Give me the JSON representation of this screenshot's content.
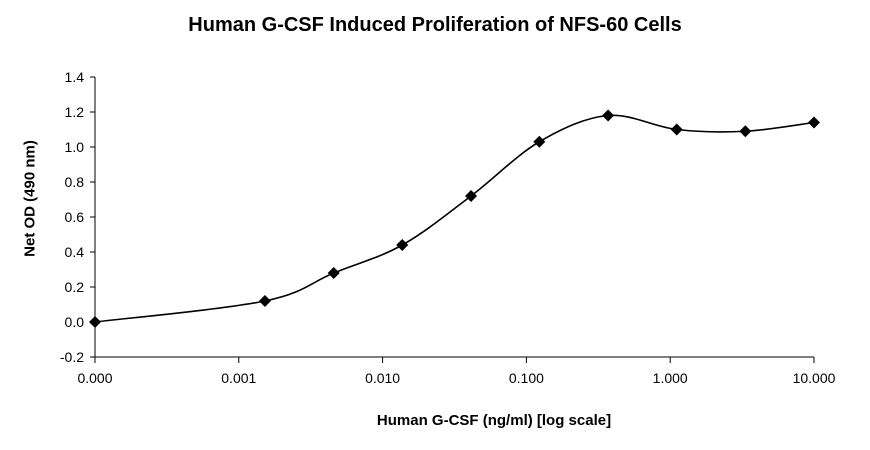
{
  "chart_data": {
    "type": "line",
    "title": "Human G-CSF Induced Proliferation of NFS-60 Cells",
    "xlabel": "Human G-CSF  (ng/ml) [log scale]",
    "ylabel": "Net OD (490 nm)",
    "x_scale": "log",
    "x_tick_labels": [
      "0.000",
      "0.001",
      "0.010",
      "0.100",
      "1.000",
      "10.000"
    ],
    "y_tick_labels": [
      "-0.2",
      "0.0",
      "0.2",
      "0.4",
      "0.6",
      "0.8",
      "1.0",
      "1.2",
      "1.4"
    ],
    "ylim": [
      -0.2,
      1.4
    ],
    "grid": false,
    "series": [
      {
        "x": [
          0.0001,
          0.00152,
          0.00457,
          0.0137,
          0.0412,
          0.123,
          0.37,
          1.11,
          3.33,
          10.0
        ],
        "values": [
          0.0,
          0.12,
          0.28,
          0.44,
          0.72,
          1.03,
          1.18,
          1.1,
          1.09,
          1.14
        ],
        "color": "#000000",
        "marker": "diamond"
      }
    ]
  }
}
